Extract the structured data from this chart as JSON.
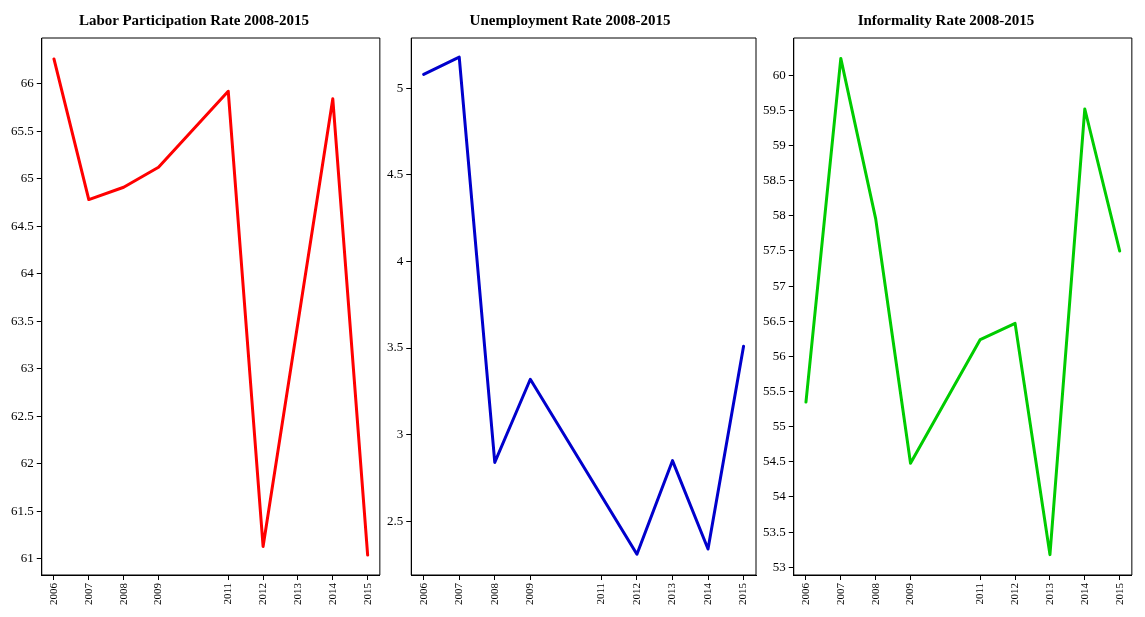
{
  "chart_data": [
    {
      "type": "line",
      "title": "Labor Participation Rate 2008-2015",
      "x": [
        2006,
        2007,
        2008,
        2009,
        2011,
        2012,
        2014,
        2015
      ],
      "series": [
        {
          "color": "#ff0000",
          "values": [
            66.26,
            64.78,
            64.91,
            65.12,
            65.92,
            61.13,
            65.84,
            61.04
          ]
        }
      ],
      "xlim": [
        2005.65,
        2015.35
      ],
      "xticks": [
        2006,
        2007,
        2008,
        2009,
        2011,
        2012,
        2013,
        2014,
        2015
      ],
      "ylim": [
        60.83,
        66.48
      ],
      "yticks": [
        61,
        61.5,
        62,
        62.5,
        63,
        63.5,
        64,
        64.5,
        65,
        65.5,
        66
      ],
      "grid": false,
      "legend": false
    },
    {
      "type": "line",
      "title": "Unemployment Rate 2008-2015",
      "x": [
        2006,
        2007,
        2008,
        2009,
        2012,
        2013,
        2014,
        2015
      ],
      "series": [
        {
          "color": "#0000cc",
          "values": [
            5.08,
            5.18,
            2.84,
            3.32,
            2.31,
            2.85,
            2.34,
            3.51
          ]
        }
      ],
      "xlim": [
        2005.65,
        2015.35
      ],
      "xticks": [
        2006,
        2007,
        2008,
        2009,
        2011,
        2012,
        2013,
        2014,
        2015
      ],
      "ylim": [
        2.19,
        5.29
      ],
      "yticks": [
        2.5,
        3,
        3.5,
        4,
        4.5,
        5
      ],
      "grid": false,
      "legend": false
    },
    {
      "type": "line",
      "title": "Informality Rate 2008-2015",
      "x": [
        2006,
        2007,
        2008,
        2009,
        2011,
        2012,
        2013,
        2014,
        2015
      ],
      "series": [
        {
          "color": "#00cc00",
          "values": [
            55.35,
            60.24,
            57.96,
            54.48,
            56.24,
            56.47,
            53.18,
            59.52,
            57.5
          ]
        }
      ],
      "xlim": [
        2005.65,
        2015.35
      ],
      "xticks": [
        2006,
        2007,
        2008,
        2009,
        2011,
        2012,
        2013,
        2014,
        2015
      ],
      "ylim": [
        52.89,
        60.53
      ],
      "yticks": [
        53,
        53.5,
        54,
        54.5,
        55,
        55.5,
        56,
        56.5,
        57,
        57.5,
        58,
        58.5,
        59,
        59.5,
        60
      ],
      "grid": false,
      "legend": false
    }
  ]
}
